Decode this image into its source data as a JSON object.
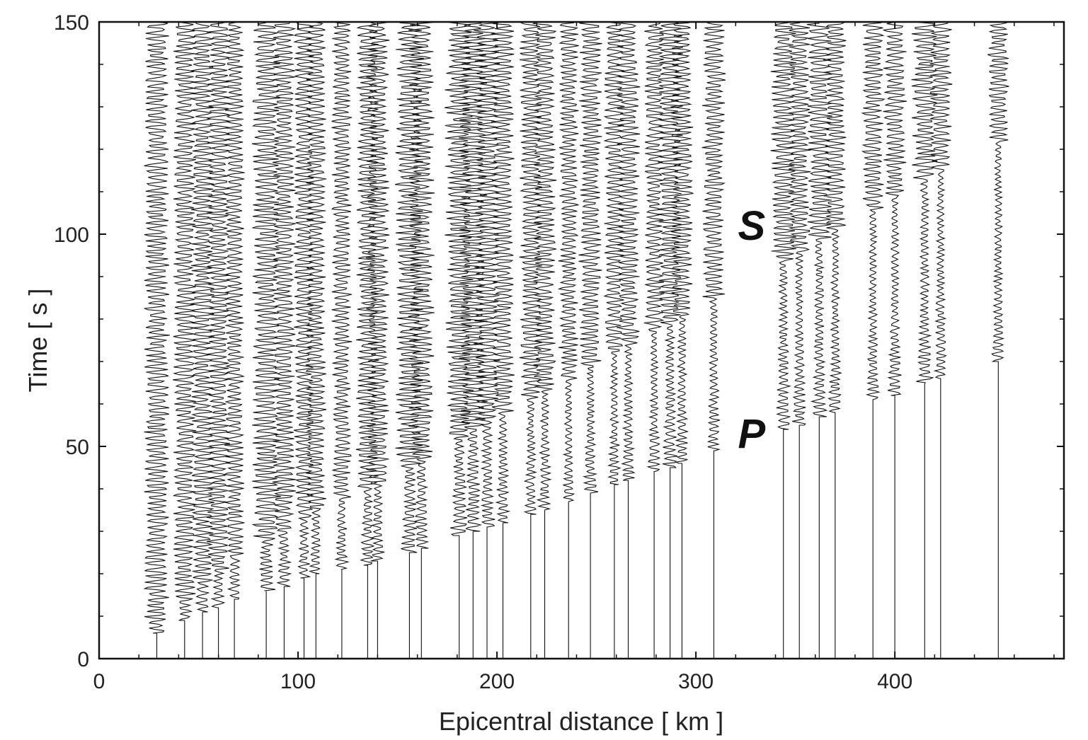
{
  "chart_data": {
    "type": "line",
    "title": "",
    "xlabel": "Epicentral distance [ km ]",
    "ylabel": "Time [ s ]",
    "xlim": [
      0,
      485
    ],
    "ylim": [
      0,
      150
    ],
    "x_ticks": [
      0,
      100,
      200,
      300,
      400
    ],
    "y_ticks": [
      0,
      50,
      100,
      150
    ],
    "x_tick_labels": [
      "0",
      "100",
      "200",
      "300",
      "400"
    ],
    "y_tick_labels": [
      "0",
      "50",
      "100",
      "150"
    ],
    "grid": false,
    "line_color": "#111111",
    "annotations": [
      {
        "text": "S",
        "x": 328,
        "y": 102
      },
      {
        "text": "P",
        "x": 328,
        "y": 53
      }
    ],
    "stations": [
      {
        "distance_km": 29,
        "p_time_s": 6,
        "s_time_s": 9,
        "amplitude_km": 4.5
      },
      {
        "distance_km": 43,
        "p_time_s": 9,
        "s_time_s": 14,
        "amplitude_km": 4
      },
      {
        "distance_km": 52,
        "p_time_s": 11,
        "s_time_s": 18,
        "amplitude_km": 4
      },
      {
        "distance_km": 60,
        "p_time_s": 12,
        "s_time_s": 21,
        "amplitude_km": 4
      },
      {
        "distance_km": 68,
        "p_time_s": 14,
        "s_time_s": 24,
        "amplitude_km": 3.5
      },
      {
        "distance_km": 84,
        "p_time_s": 16,
        "s_time_s": 28,
        "amplitude_km": 5
      },
      {
        "distance_km": 93,
        "p_time_s": 17,
        "s_time_s": 30,
        "amplitude_km": 4
      },
      {
        "distance_km": 103,
        "p_time_s": 19,
        "s_time_s": 33,
        "amplitude_km": 3.5
      },
      {
        "distance_km": 109,
        "p_time_s": 20,
        "s_time_s": 35,
        "amplitude_km": 3.5
      },
      {
        "distance_km": 122,
        "p_time_s": 21,
        "s_time_s": 38,
        "amplitude_km": 3.5
      },
      {
        "distance_km": 135,
        "p_time_s": 22,
        "s_time_s": 40,
        "amplitude_km": 4
      },
      {
        "distance_km": 140,
        "p_time_s": 23,
        "s_time_s": 41,
        "amplitude_km": 4
      },
      {
        "distance_km": 156,
        "p_time_s": 25,
        "s_time_s": 45,
        "amplitude_km": 5
      },
      {
        "distance_km": 162,
        "p_time_s": 26,
        "s_time_s": 47,
        "amplitude_km": 4.5
      },
      {
        "distance_km": 181,
        "p_time_s": 29,
        "s_time_s": 52,
        "amplitude_km": 5
      },
      {
        "distance_km": 188,
        "p_time_s": 30,
        "s_time_s": 54,
        "amplitude_km": 5
      },
      {
        "distance_km": 195,
        "p_time_s": 31,
        "s_time_s": 56,
        "amplitude_km": 4.5
      },
      {
        "distance_km": 203,
        "p_time_s": 32,
        "s_time_s": 58,
        "amplitude_km": 4
      },
      {
        "distance_km": 217,
        "p_time_s": 34,
        "s_time_s": 61,
        "amplitude_km": 4
      },
      {
        "distance_km": 224,
        "p_time_s": 35,
        "s_time_s": 63,
        "amplitude_km": 4
      },
      {
        "distance_km": 236,
        "p_time_s": 37,
        "s_time_s": 66,
        "amplitude_km": 3.5
      },
      {
        "distance_km": 247,
        "p_time_s": 39,
        "s_time_s": 69,
        "amplitude_km": 4
      },
      {
        "distance_km": 259,
        "p_time_s": 41,
        "s_time_s": 72,
        "amplitude_km": 3.5
      },
      {
        "distance_km": 266,
        "p_time_s": 42,
        "s_time_s": 74,
        "amplitude_km": 4
      },
      {
        "distance_km": 279,
        "p_time_s": 44,
        "s_time_s": 77,
        "amplitude_km": 3.5
      },
      {
        "distance_km": 287,
        "p_time_s": 45,
        "s_time_s": 79,
        "amplitude_km": 4.5
      },
      {
        "distance_km": 293,
        "p_time_s": 46,
        "s_time_s": 81,
        "amplitude_km": 4
      },
      {
        "distance_km": 309,
        "p_time_s": 49,
        "s_time_s": 85,
        "amplitude_km": 4
      },
      {
        "distance_km": 344,
        "p_time_s": 54,
        "s_time_s": 94,
        "amplitude_km": 4.5
      },
      {
        "distance_km": 352,
        "p_time_s": 55,
        "s_time_s": 96,
        "amplitude_km": 4
      },
      {
        "distance_km": 362,
        "p_time_s": 57,
        "s_time_s": 99,
        "amplitude_km": 4.5
      },
      {
        "distance_km": 370,
        "p_time_s": 58,
        "s_time_s": 101,
        "amplitude_km": 4
      },
      {
        "distance_km": 389,
        "p_time_s": 61,
        "s_time_s": 106,
        "amplitude_km": 4
      },
      {
        "distance_km": 400,
        "p_time_s": 62,
        "s_time_s": 109,
        "amplitude_km": 4
      },
      {
        "distance_km": 415,
        "p_time_s": 65,
        "s_time_s": 113,
        "amplitude_km": 4.5
      },
      {
        "distance_km": 423,
        "p_time_s": 66,
        "s_time_s": 115,
        "amplitude_km": 4
      },
      {
        "distance_km": 452,
        "p_time_s": 70,
        "s_time_s": 122,
        "amplitude_km": 4
      }
    ]
  }
}
